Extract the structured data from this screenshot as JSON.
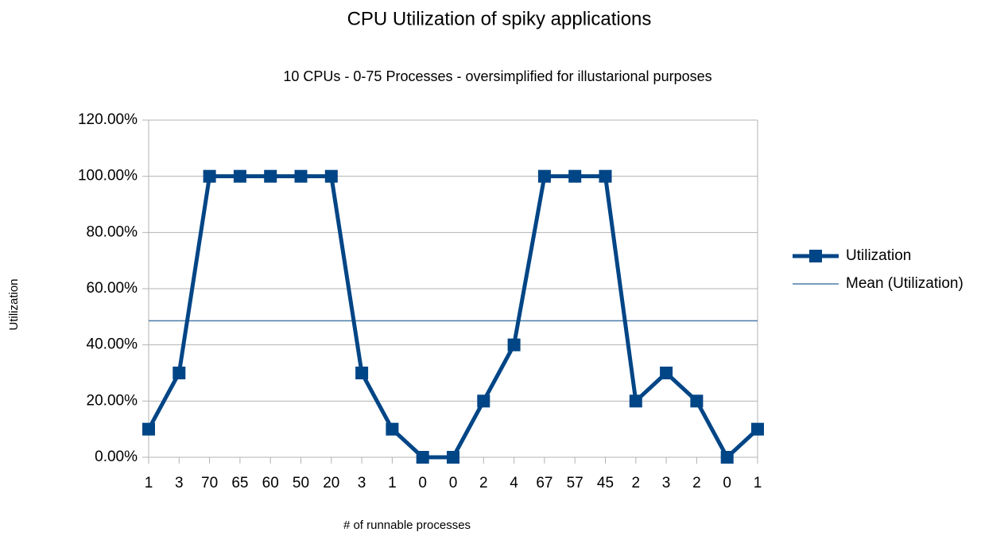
{
  "chart_data": {
    "type": "line",
    "title": "CPU Utilization of spiky applications",
    "subtitle": "10 CPUs - 0-75 Processes - oversimplified for illustarional purposes",
    "x_label": "# of runnable processes",
    "y_label": "Utilization",
    "categories": [
      "1",
      "3",
      "70",
      "65",
      "60",
      "50",
      "20",
      "3",
      "1",
      "0",
      "0",
      "2",
      "4",
      "67",
      "57",
      "45",
      "2",
      "3",
      "2",
      "0",
      "1"
    ],
    "series": [
      {
        "name": "Utilization",
        "color": "#004586",
        "values": [
          10,
          30,
          100,
          100,
          100,
          100,
          100,
          30,
          10,
          0,
          0,
          20,
          40,
          100,
          100,
          100,
          20,
          30,
          20,
          0,
          10
        ]
      }
    ],
    "mean_line": {
      "name": "Mean (Utilization)",
      "color": "#4a7ca8",
      "value": 48.57
    },
    "ylim": [
      0,
      120
    ],
    "yticks": [
      {
        "value": 0,
        "label": "0.00%"
      },
      {
        "value": 20,
        "label": "20.00%"
      },
      {
        "value": 40,
        "label": "40.00%"
      },
      {
        "value": 60,
        "label": "60.00%"
      },
      {
        "value": 80,
        "label": "80.00%"
      },
      {
        "value": 100,
        "label": "100.00%"
      },
      {
        "value": 120,
        "label": "120.00%"
      }
    ],
    "grid": true,
    "legend": "right"
  }
}
